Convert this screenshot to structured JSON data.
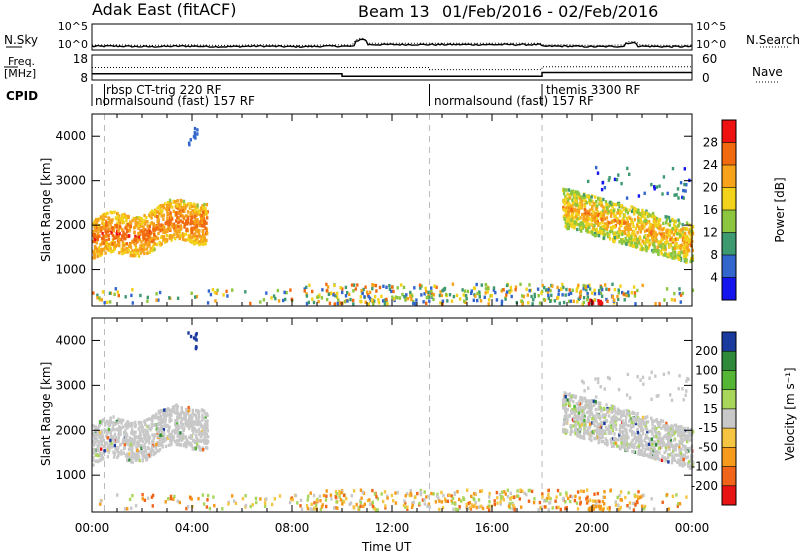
{
  "header": {
    "station": "Adak East (fitACF)",
    "beam_label": "Beam 13",
    "date_range": "01/Feb/2016 - 02/Feb/2016"
  },
  "noise_panel": {
    "left_label": "N.Sky",
    "right_label": "N.Search",
    "left_ticks": [
      "10^5",
      "10^0"
    ],
    "right_ticks": [
      "10^5",
      "10^0"
    ]
  },
  "freq_panel": {
    "left_label_line1": "Freq.",
    "left_label_line2": "[MHz]",
    "right_label": "Nave",
    "left_ticks": [
      "18",
      "8"
    ],
    "right_ticks": [
      "60",
      "0"
    ]
  },
  "cpid": {
    "label": "CPID",
    "segments": [
      {
        "name": "rbsp CT-trig 220 RF",
        "start_hour": 0.5
      },
      {
        "name": "normalsound (fast) 157 RF",
        "start_hour": 0.0
      },
      {
        "name": "normalsound (fast) 157 RF",
        "start_hour": 13.5
      },
      {
        "name": "themis 3300 RF",
        "start_hour": 18.0
      }
    ]
  },
  "x_axis": {
    "label": "Time UT",
    "ticks": [
      "00:00",
      "04:00",
      "08:00",
      "12:00",
      "16:00",
      "20:00",
      "00:00"
    ]
  },
  "power_colorbar": {
    "label": "Power [dB]",
    "ticks": [
      "28",
      "24",
      "20",
      "16",
      "12",
      "8",
      "4"
    ],
    "colors": [
      "#ee1111",
      "#f26a10",
      "#f6a21a",
      "#f2d21a",
      "#8cc63f",
      "#3d9970",
      "#3366cc",
      "#1414ee"
    ]
  },
  "velocity_colorbar": {
    "label": "Velocity [m s⁻¹]",
    "ticks": [
      "200",
      "100",
      "50",
      "15",
      "-15",
      "-50",
      "-100",
      "-200"
    ],
    "colors": [
      "#1a3a9e",
      "#2e8a3a",
      "#55b535",
      "#a8d65a",
      "#c8c8c8",
      "#f5c542",
      "#f59a1a",
      "#f0651a",
      "#e81414"
    ]
  },
  "chart_data": [
    {
      "type": "line",
      "title": "",
      "series": [
        {
          "name": "N.Sky"
        },
        {
          "name": "N.Search"
        }
      ],
      "x_range_hours": [
        0,
        24
      ],
      "ylim_log10": [
        0,
        5
      ],
      "notes": "noise mostly ~10^0.5, spike near 10:45 UT, small bump near 21:30 UT"
    },
    {
      "type": "line",
      "title": "",
      "series": [
        {
          "name": "Freq.",
          "x_hours": [
            0,
            10.0,
            10.0,
            18.0,
            18.0,
            24
          ],
          "y_mhz": [
            10.5,
            10.5,
            9.5,
            9.5,
            11.0,
            11.0
          ]
        },
        {
          "name": "Nave",
          "x_hours": [
            0,
            13.5,
            13.5,
            18.0,
            18.0,
            24
          ],
          "y": [
            30,
            30,
            25,
            25,
            32,
            32
          ]
        }
      ],
      "ylim_freq": [
        8,
        18
      ],
      "ylim_nave": [
        0,
        60
      ]
    },
    {
      "type": "heatmap",
      "title": "",
      "xlabel": "",
      "ylabel": "Slant Range [km]",
      "x_range_hours": [
        0,
        24
      ],
      "ylim_km": [
        180,
        4500
      ],
      "yticks": [
        "1000",
        "2000",
        "3000",
        "4000"
      ],
      "quantity": "Power [dB]",
      "regions": [
        {
          "t0": 0.0,
          "t1": 4.5,
          "range_lo": 1200,
          "range_hi": 2300,
          "value_db": 20
        },
        {
          "t0": 18.8,
          "t1": 24.0,
          "range_lo": 1400,
          "range_hi": 2800,
          "value_db": 14
        },
        {
          "t0": 8.5,
          "t1": 22.0,
          "range_lo": 200,
          "range_hi": 600,
          "value_db": 8
        }
      ]
    },
    {
      "type": "heatmap",
      "title": "",
      "xlabel": "Time UT",
      "ylabel": "Slant Range [km]",
      "x_range_hours": [
        0,
        24
      ],
      "ylim_km": [
        180,
        4500
      ],
      "yticks": [
        "1000",
        "2000",
        "3000",
        "4000"
      ],
      "quantity": "Velocity [m s⁻¹]",
      "regions": [
        {
          "t0": 0.0,
          "t1": 4.5,
          "range_lo": 1200,
          "range_hi": 2300,
          "value_ms": 0
        },
        {
          "t0": 18.8,
          "t1": 24.0,
          "range_lo": 1400,
          "range_hi": 2800,
          "value_ms": 0
        },
        {
          "t0": 8.5,
          "t1": 22.0,
          "range_lo": 200,
          "range_hi": 600,
          "value_ms": -50
        }
      ]
    }
  ]
}
